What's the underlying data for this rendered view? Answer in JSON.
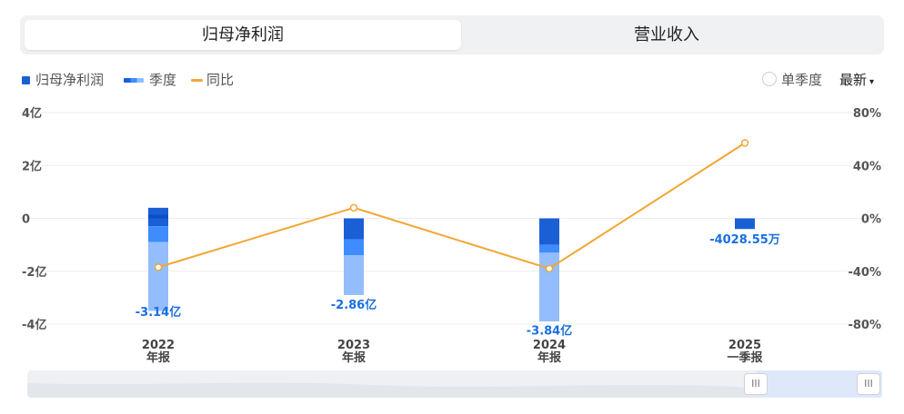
{
  "tabs": [
    {
      "label": "归母净利润",
      "active": true
    },
    {
      "label": "营业收入",
      "active": false
    }
  ],
  "legend": {
    "net_profit": "归母净利润",
    "quarter": "季度",
    "yoy": "同比"
  },
  "controls": {
    "single_quarter": "单季度",
    "latest": "最新",
    "latest_arrow": "▾"
  },
  "scrollbar": {
    "handle_left": "III",
    "handle_right": "III"
  },
  "colors": {
    "net_profit": "#1a5fd6",
    "q_mid": "#3f8cff",
    "q_light": "#93bdfc",
    "yoy_line": "#f2a632",
    "value_label": "#1a6fe0"
  },
  "chart_data": {
    "type": "bar",
    "categories": [
      "2022\n年报",
      "2023\n年报",
      "2024\n年报",
      "2025\n一季报"
    ],
    "category_labels": [
      {
        "year": "2022",
        "period": "年报"
      },
      {
        "year": "2023",
        "period": "年报"
      },
      {
        "year": "2024",
        "period": "年报"
      },
      {
        "year": "2025",
        "period": "一季报"
      }
    ],
    "left_axis": {
      "ticks": [
        "4亿",
        "2亿",
        "0",
        "-2亿",
        "-4亿"
      ],
      "tick_values": [
        4,
        2,
        0,
        -2,
        -4
      ],
      "ylim": [
        -4,
        4
      ],
      "unit": "亿"
    },
    "right_axis": {
      "ticks": [
        "80%",
        "40%",
        "0%",
        "-40%",
        "-80%"
      ],
      "tick_values": [
        80,
        40,
        0,
        -40,
        -80
      ],
      "ylim": [
        -80,
        80
      ]
    },
    "net_profit": {
      "values": [
        -3.14,
        -2.86,
        -3.84,
        -0.4029
      ],
      "labels": [
        "-3.14亿",
        "-2.86亿",
        "-3.84亿",
        "-4028.55万"
      ]
    },
    "quarterly_stacks": [
      {
        "positive": [
          0.4
        ],
        "negative": [
          -0.3,
          -0.6,
          -2.6
        ]
      },
      {
        "positive": [],
        "negative": [
          -0.8,
          -0.6,
          -1.5
        ]
      },
      {
        "positive": [],
        "negative": [
          -1.0,
          -0.3,
          -2.6
        ]
      },
      {
        "positive": [],
        "negative": [
          -0.4029
        ]
      }
    ],
    "yoy": {
      "values": [
        -37,
        8,
        -38,
        57
      ]
    },
    "grid": true
  }
}
